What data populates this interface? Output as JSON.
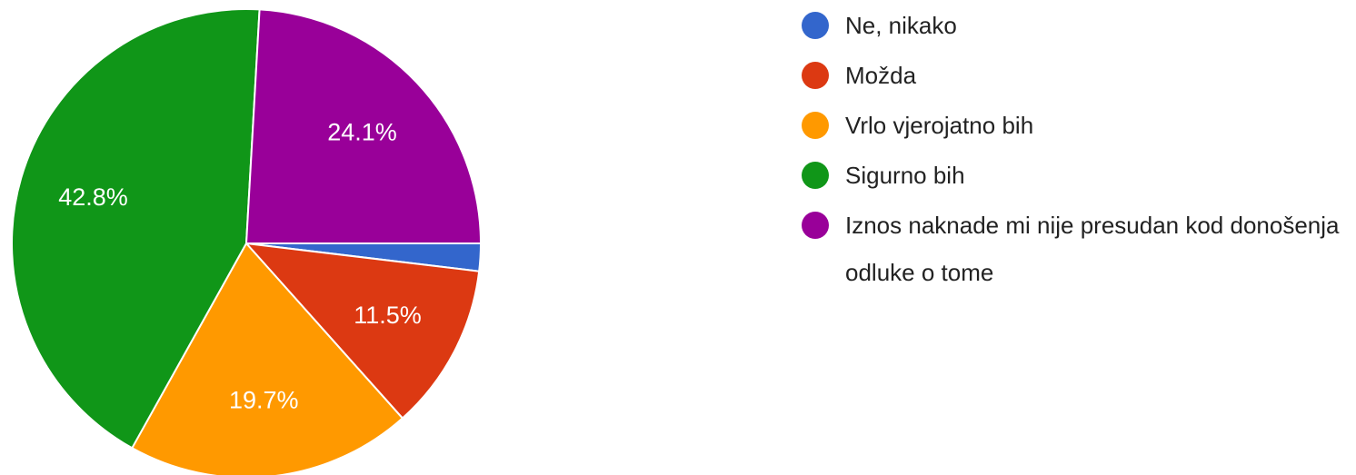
{
  "chart_data": {
    "type": "pie",
    "categories": [
      "Ne, nikako",
      "Možda",
      "Vrlo vjerojatno bih",
      "Sigurno bih",
      "Iznos naknade mi nije presudan kod donošenja odluke o tome"
    ],
    "values": [
      1.9,
      11.5,
      19.7,
      42.8,
      24.1
    ],
    "value_labels": [
      null,
      "11.5%",
      "19.7%",
      "42.8%",
      "24.1%"
    ],
    "colors": [
      "#3366cc",
      "#dc3912",
      "#ff9900",
      "#109618",
      "#990099"
    ],
    "legend": "right"
  }
}
